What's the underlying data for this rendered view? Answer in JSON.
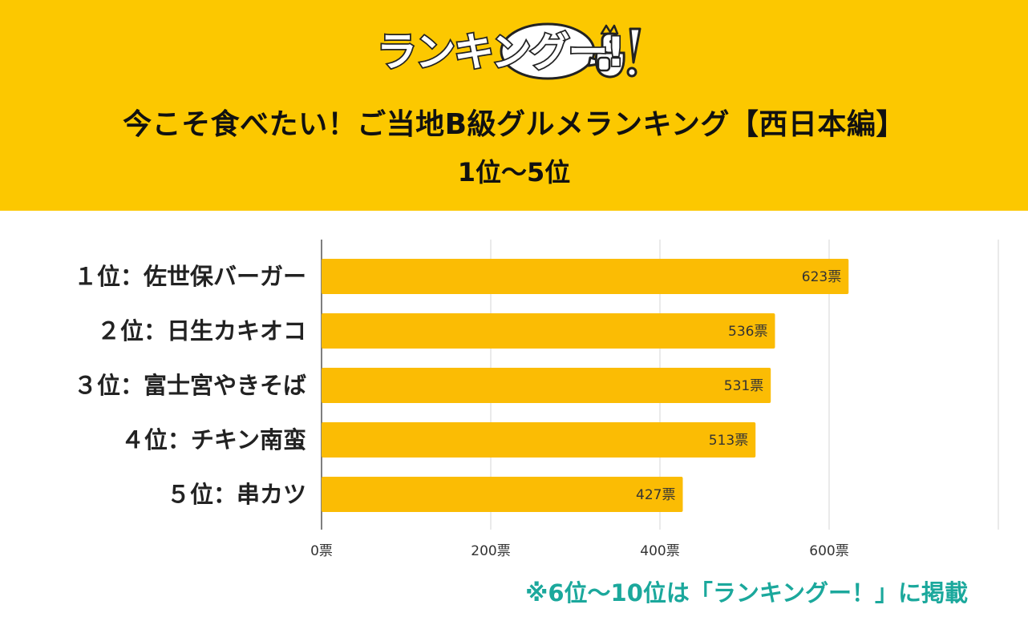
{
  "header": {
    "logo_text": "ランキングー!",
    "title": "今こそ食べたい！ご当地B級グルメランキング【西日本編】",
    "subtitle": "1位〜5位"
  },
  "colors": {
    "header_bg": "#fcc800",
    "bar": "#fbbc04",
    "footnote": "#1ba89c"
  },
  "chart_data": {
    "type": "bar",
    "orientation": "horizontal",
    "categories": [
      "１位：佐世保バーガー",
      "２位：日生カキオコ",
      "３位：富士宮やきそば",
      "４位：チキン南蛮",
      "５位：串カツ"
    ],
    "values": [
      623,
      536,
      531,
      513,
      427
    ],
    "value_labels": [
      "623票",
      "536票",
      "531票",
      "513票",
      "427票"
    ],
    "x_ticks": [
      "0票",
      "200票",
      "400票",
      "600票"
    ],
    "x_tick_values": [
      0,
      200,
      400,
      600
    ],
    "xlim": [
      0,
      800
    ],
    "grid": true
  },
  "footnote": "※6位〜10位は「ランキングー！」に掲載"
}
